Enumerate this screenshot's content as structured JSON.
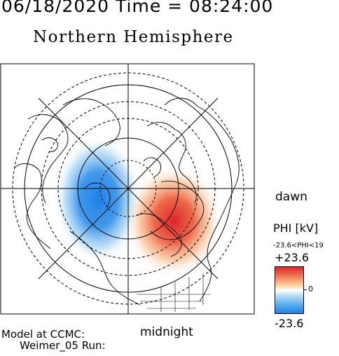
{
  "header": {
    "timestamp": "06/18/2020 Time = 08:24:00",
    "title": "Northern Hemisphere"
  },
  "orientation": {
    "dawn": "dawn",
    "midnight": "midnight"
  },
  "model": {
    "line1": "Model at CCMC:",
    "line2": "Weimer_05 Run:"
  },
  "colorbar": {
    "label": "PHI [kV]",
    "range_text": "-23.6<PHI<19",
    "max": "+23.6",
    "min": "-23.6",
    "zero": "0",
    "colors": {
      "positive": "#e0242c",
      "neutral": "#ffffff",
      "negative": "#1f82e6"
    }
  },
  "map": {
    "projection": "polar",
    "potential_cells": [
      {
        "sign": "negative",
        "color": "#1f82e6"
      },
      {
        "sign": "positive",
        "color": "#e0242c"
      }
    ]
  }
}
